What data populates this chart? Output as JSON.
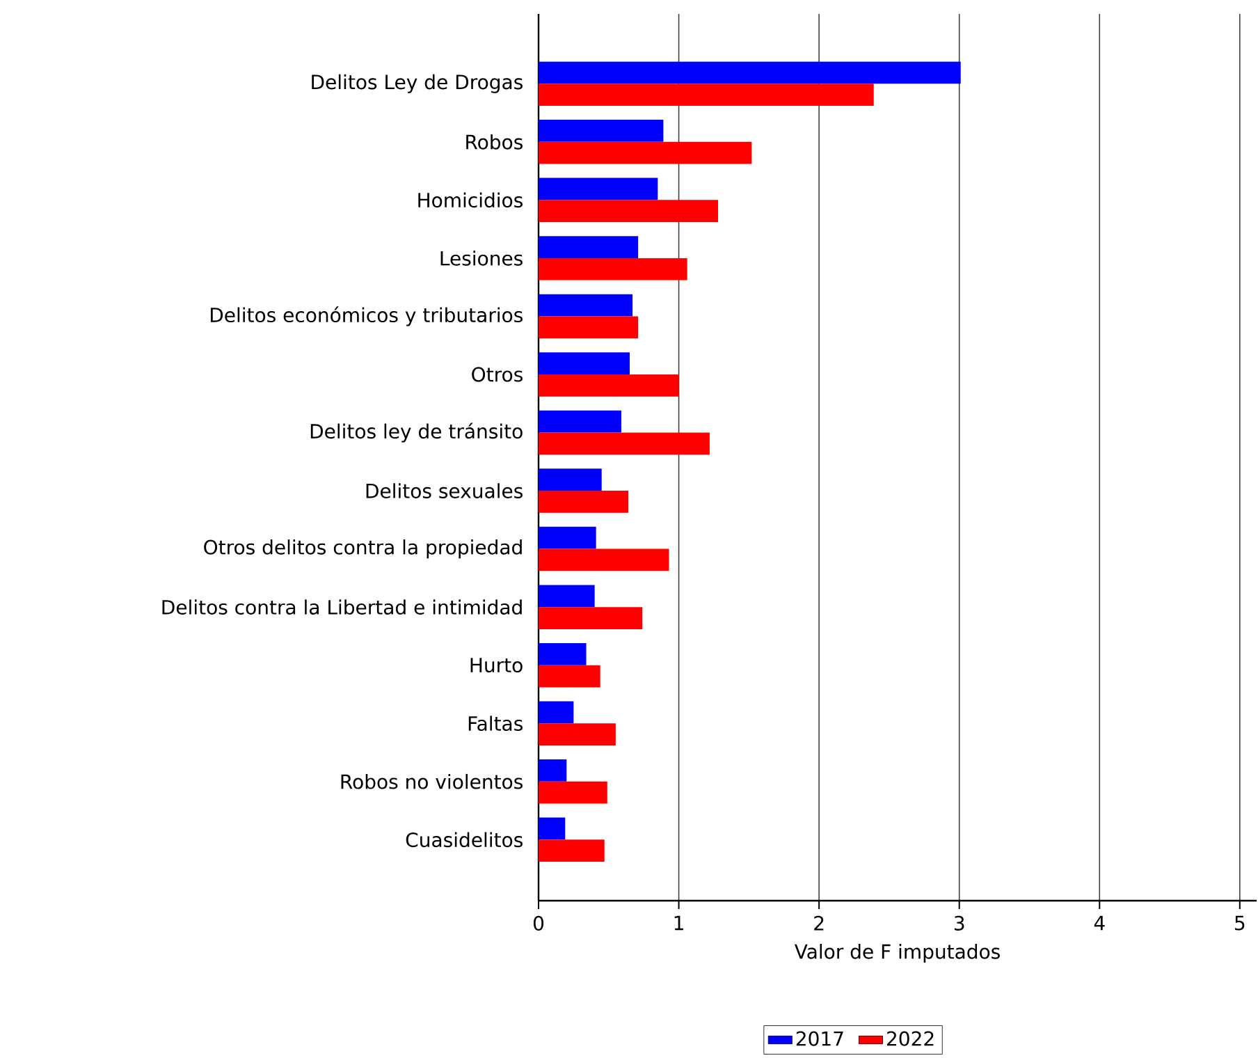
{
  "chart_data": {
    "type": "bar",
    "orientation": "horizontal",
    "xlabel": "Valor de F imputados",
    "categories": [
      "Delitos Ley de Drogas",
      "Robos",
      "Homicidios",
      "Lesiones",
      "Delitos económicos y tributarios",
      "Otros",
      "Delitos ley de tránsito",
      "Delitos sexuales",
      "Otros delitos contra la propiedad",
      "Delitos contra la Libertad e intimidad",
      "Hurto",
      "Faltas",
      "Robos no violentos",
      "Cuasidelitos"
    ],
    "series": [
      {
        "name": "2017",
        "color": "#0000ff",
        "values": [
          3.01,
          0.89,
          0.85,
          0.71,
          0.67,
          0.65,
          0.59,
          0.45,
          0.41,
          0.4,
          0.34,
          0.25,
          0.2,
          0.19
        ]
      },
      {
        "name": "2022",
        "color": "#ff0000",
        "values": [
          2.39,
          1.52,
          1.28,
          1.06,
          0.71,
          1.0,
          1.22,
          0.64,
          0.93,
          0.74,
          0.44,
          0.55,
          0.49,
          0.47
        ]
      }
    ],
    "xlim": [
      0,
      5.12
    ],
    "xticks": [
      0,
      1,
      2,
      3,
      4,
      5
    ],
    "grid": "x",
    "legend": "bottom"
  }
}
